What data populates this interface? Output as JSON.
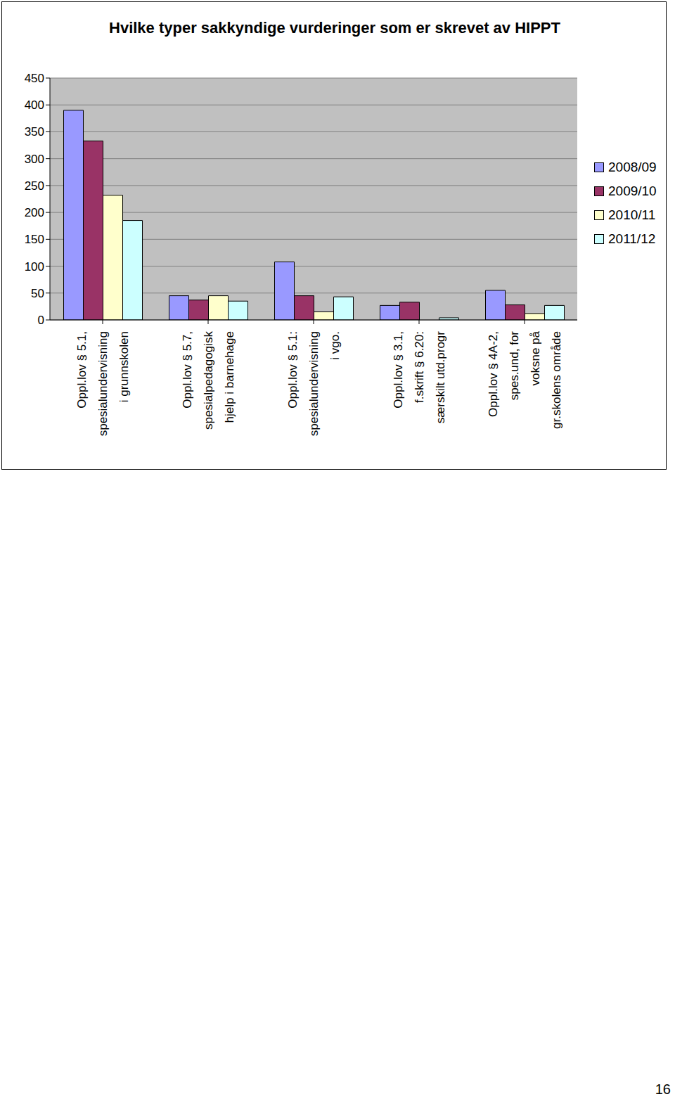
{
  "chart_data": {
    "type": "bar",
    "title": "Hvilke typer sakkyndige vurderinger som er skrevet av HIPPT",
    "categories": [
      "Oppl.lov § 5.1,\nspesialundervisning\ni grunnskolen",
      "Oppl.lov § 5.7,\nspesialpedagogisk\nhjelp i barnehage",
      "Oppl.lov § 5.1:\nspesialundervisning\ni vgo.",
      "Oppl.lov § 3.1,\nf.skrift § 6.20:\nsærskilt utd.progr",
      "Oppl.lov § 4A-2,\nspes.und, for\nvoksne på\ngr.skolens område"
    ],
    "series": [
      {
        "name": "2008/09",
        "color": "#9999ff",
        "values": [
          390,
          45,
          108,
          27,
          55
        ]
      },
      {
        "name": "2009/10",
        "color": "#993366",
        "values": [
          333,
          37,
          45,
          33,
          28
        ]
      },
      {
        "name": "2010/11",
        "color": "#ffffcc",
        "values": [
          232,
          45,
          15,
          null,
          12
        ]
      },
      {
        "name": "2011/12",
        "color": "#ccffff",
        "values": [
          185,
          35,
          43,
          4,
          27
        ]
      }
    ],
    "ylim": [
      0,
      450
    ],
    "yticks": [
      0,
      50,
      100,
      150,
      200,
      250,
      300,
      350,
      400,
      450
    ],
    "grid": true,
    "legend": "right"
  },
  "page_number": "16"
}
